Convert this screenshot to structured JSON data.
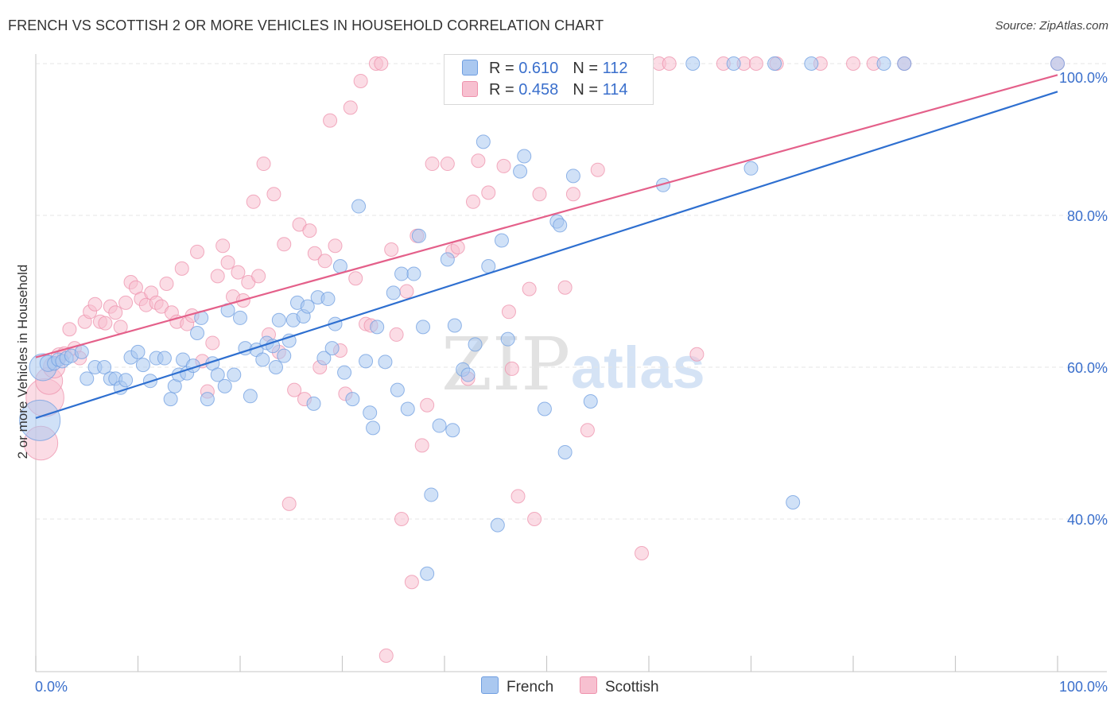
{
  "header": {
    "title": "FRENCH VS SCOTTISH 2 OR MORE VEHICLES IN HOUSEHOLD CORRELATION CHART",
    "source": "Source: ZipAtlas.com"
  },
  "colors": {
    "french_fill": "#aac8f0",
    "french_stroke": "#6f9ee0",
    "french_line": "#2e6fd0",
    "scottish_fill": "#f7c0d0",
    "scottish_stroke": "#ee92ac",
    "scottish_line": "#e4608a",
    "tick_text": "#3a6fcc",
    "grid": "#e4e4e4"
  },
  "legend": {
    "french": {
      "r_label": "R =",
      "r_value": "0.610",
      "n_label": "N =",
      "n_value": "112"
    },
    "scottish": {
      "r_label": "R =",
      "r_value": "0.458",
      "n_label": "N =",
      "n_value": "114"
    }
  },
  "watermark": {
    "part1": "ZIP",
    "part2": "atlas"
  },
  "chart_data": {
    "type": "scatter",
    "title": "FRENCH VS SCOTTISH 2 OR MORE VEHICLES IN HOUSEHOLD CORRELATION CHART",
    "xlabel": "",
    "ylabel": "2 or more Vehicles in Household",
    "xlim": [
      0,
      100
    ],
    "ylim": [
      20,
      102
    ],
    "x_tick_labels": [
      "0.0%",
      "100.0%"
    ],
    "y_ticks": [
      40,
      60,
      80,
      100
    ],
    "y_tick_labels": [
      "40.0%",
      "60.0%",
      "80.0%",
      "100.0%"
    ],
    "grid": true,
    "legend_position": "top-center",
    "series": [
      {
        "name": "French",
        "trend": {
          "x": [
            0,
            100
          ],
          "y": [
            53.3,
            96.3
          ]
        },
        "points": [
          [
            0.4,
            53,
            3
          ],
          [
            0.7,
            60,
            2
          ],
          [
            1.2,
            60.5,
            1.2
          ],
          [
            1.8,
            60.5,
            1
          ],
          [
            2.2,
            61,
            1
          ],
          [
            2.6,
            60.8,
            1
          ],
          [
            3,
            61.2,
            1
          ],
          [
            3.5,
            61.5,
            1
          ],
          [
            4.5,
            62,
            1
          ],
          [
            5,
            58.5,
            1
          ],
          [
            5.8,
            60,
            1
          ],
          [
            6.7,
            60,
            1
          ],
          [
            7.3,
            58.5,
            1
          ],
          [
            7.8,
            58.5,
            1
          ],
          [
            8.3,
            57.3,
            1
          ],
          [
            8.8,
            58.3,
            1
          ],
          [
            9.3,
            61.3,
            1
          ],
          [
            10,
            62,
            1
          ],
          [
            10.5,
            60.3,
            1
          ],
          [
            11.2,
            58.2,
            1
          ],
          [
            11.8,
            61.2,
            1
          ],
          [
            12.6,
            61.2,
            1
          ],
          [
            13.2,
            55.8,
            1
          ],
          [
            13.6,
            57.5,
            1
          ],
          [
            14,
            59,
            1
          ],
          [
            14.4,
            61,
            1
          ],
          [
            14.8,
            59.2,
            1
          ],
          [
            15.4,
            60.2,
            1
          ],
          [
            15.8,
            64.5,
            1
          ],
          [
            16.2,
            66.5,
            1
          ],
          [
            16.8,
            55.8,
            1
          ],
          [
            17.3,
            60.5,
            1
          ],
          [
            17.8,
            59,
            1
          ],
          [
            18.5,
            57.5,
            1
          ],
          [
            18.8,
            67.5,
            1
          ],
          [
            19.4,
            59,
            1
          ],
          [
            20,
            66.5,
            1
          ],
          [
            20.5,
            62.5,
            1
          ],
          [
            21,
            56.2,
            1
          ],
          [
            21.6,
            62.3,
            1
          ],
          [
            22.2,
            61,
            1
          ],
          [
            22.6,
            63.2,
            1
          ],
          [
            23.2,
            62.8,
            1
          ],
          [
            23.5,
            60,
            1
          ],
          [
            23.8,
            66.2,
            1
          ],
          [
            24.3,
            61.5,
            1
          ],
          [
            24.8,
            63.5,
            1
          ],
          [
            25.2,
            66.2,
            1
          ],
          [
            25.6,
            68.5,
            1
          ],
          [
            26.2,
            66.7,
            1
          ],
          [
            26.6,
            68,
            1
          ],
          [
            27.2,
            55.2,
            1
          ],
          [
            27.6,
            69.2,
            1
          ],
          [
            28.2,
            61.2,
            1
          ],
          [
            28.6,
            69,
            1
          ],
          [
            29,
            62.5,
            1
          ],
          [
            29.3,
            65.7,
            1
          ],
          [
            29.8,
            73.3,
            1
          ],
          [
            30.2,
            59.3,
            1
          ],
          [
            31,
            55.8,
            1
          ],
          [
            31.6,
            81.2,
            1
          ],
          [
            32.3,
            60.8,
            1
          ],
          [
            32.7,
            54,
            1
          ],
          [
            33,
            52,
            1
          ],
          [
            33.4,
            65.3,
            1
          ],
          [
            34.2,
            60.7,
            1
          ],
          [
            35,
            69.8,
            1
          ],
          [
            35.4,
            57,
            1
          ],
          [
            35.8,
            72.3,
            1
          ],
          [
            36.4,
            54.5,
            1
          ],
          [
            37,
            72.3,
            1
          ],
          [
            37.5,
            77.3,
            1
          ],
          [
            37.9,
            65.3,
            1
          ],
          [
            38.3,
            32.8,
            1
          ],
          [
            38.7,
            43.2,
            1
          ],
          [
            39.5,
            52.3,
            1
          ],
          [
            40.3,
            74.2,
            1
          ],
          [
            40.8,
            51.7,
            1
          ],
          [
            41,
            65.5,
            1
          ],
          [
            41.8,
            59.7,
            1
          ],
          [
            42.3,
            59,
            1
          ],
          [
            43,
            63,
            1
          ],
          [
            43.8,
            89.7,
            1
          ],
          [
            44.3,
            73.3,
            1
          ],
          [
            45.2,
            39.2,
            1
          ],
          [
            45.6,
            76.7,
            1
          ],
          [
            46.2,
            63.7,
            1
          ],
          [
            46.9,
            100,
            1
          ],
          [
            47.4,
            85.8,
            1
          ],
          [
            47.8,
            87.8,
            1
          ],
          [
            49.8,
            54.5,
            1
          ],
          [
            51,
            79.2,
            1
          ],
          [
            51.3,
            78.7,
            1
          ],
          [
            51.8,
            48.8,
            1
          ],
          [
            52.6,
            85.2,
            1
          ],
          [
            54.3,
            55.5,
            1
          ],
          [
            56.2,
            100,
            1
          ],
          [
            56.7,
            100,
            1
          ],
          [
            58.3,
            100,
            1
          ],
          [
            61.4,
            84,
            1
          ],
          [
            64.3,
            100,
            1
          ],
          [
            68.3,
            100,
            1
          ],
          [
            70,
            86.2,
            1
          ],
          [
            72.3,
            100,
            1
          ],
          [
            74.1,
            42.2,
            1
          ],
          [
            75.9,
            100,
            1
          ],
          [
            83,
            100,
            1
          ],
          [
            85,
            100,
            1
          ],
          [
            100,
            100,
            1
          ]
        ]
      },
      {
        "name": "Scottish",
        "trend": {
          "x": [
            0,
            100
          ],
          "y": [
            61.3,
            98.5
          ]
        },
        "points": [
          [
            0.5,
            50,
            2.5
          ],
          [
            0.9,
            56,
            2.8
          ],
          [
            1.3,
            58.2,
            2
          ],
          [
            1.8,
            60,
            1.6
          ],
          [
            2.3,
            61.5,
            1.2
          ],
          [
            2.8,
            61.8,
            1
          ],
          [
            3.3,
            65,
            1
          ],
          [
            3.8,
            62.5,
            1
          ],
          [
            4.3,
            61.2,
            1
          ],
          [
            4.8,
            66,
            1
          ],
          [
            5.3,
            67.3,
            1
          ],
          [
            5.8,
            68.3,
            1
          ],
          [
            6.3,
            66,
            1
          ],
          [
            6.8,
            65.8,
            1
          ],
          [
            7.3,
            68,
            1
          ],
          [
            7.8,
            67.2,
            1
          ],
          [
            8.3,
            65.3,
            1
          ],
          [
            8.8,
            68.5,
            1
          ],
          [
            9.3,
            71.2,
            1
          ],
          [
            9.8,
            70.5,
            1
          ],
          [
            10.3,
            69,
            1
          ],
          [
            10.8,
            68.2,
            1
          ],
          [
            11.3,
            69.8,
            1
          ],
          [
            11.8,
            68.5,
            1
          ],
          [
            12.3,
            68,
            1
          ],
          [
            12.8,
            71,
            1
          ],
          [
            13.3,
            67.2,
            1
          ],
          [
            13.8,
            66,
            1
          ],
          [
            14.3,
            73,
            1
          ],
          [
            14.8,
            65.7,
            1
          ],
          [
            15.3,
            66.8,
            1
          ],
          [
            15.8,
            75.2,
            1
          ],
          [
            16.3,
            60.8,
            1
          ],
          [
            16.8,
            56.8,
            1
          ],
          [
            17.3,
            63.2,
            1
          ],
          [
            17.8,
            72,
            1
          ],
          [
            18.3,
            76,
            1
          ],
          [
            18.8,
            73.8,
            1
          ],
          [
            19.3,
            69.3,
            1
          ],
          [
            19.8,
            72.5,
            1
          ],
          [
            20.3,
            68.8,
            1
          ],
          [
            20.8,
            71.2,
            1
          ],
          [
            21.3,
            81.8,
            1
          ],
          [
            21.8,
            72,
            1
          ],
          [
            22.3,
            86.8,
            1
          ],
          [
            22.8,
            64.3,
            1
          ],
          [
            23.3,
            82.8,
            1
          ],
          [
            23.8,
            62,
            1
          ],
          [
            24.3,
            76.2,
            1
          ],
          [
            24.8,
            42,
            1
          ],
          [
            25.3,
            57,
            1
          ],
          [
            25.8,
            78.8,
            1
          ],
          [
            26.3,
            55.8,
            1
          ],
          [
            26.8,
            78,
            1
          ],
          [
            27.3,
            75,
            1
          ],
          [
            27.8,
            60,
            1
          ],
          [
            28.3,
            74,
            1
          ],
          [
            28.8,
            92.5,
            1
          ],
          [
            29.3,
            76,
            1
          ],
          [
            29.8,
            62.2,
            1
          ],
          [
            30.3,
            56.5,
            1
          ],
          [
            30.8,
            94.2,
            1
          ],
          [
            31.3,
            71.7,
            1
          ],
          [
            31.8,
            97.7,
            1
          ],
          [
            32.3,
            65.7,
            1
          ],
          [
            32.8,
            65.5,
            1
          ],
          [
            33.3,
            100,
            1
          ],
          [
            33.8,
            100,
            1
          ],
          [
            34.3,
            22,
            1
          ],
          [
            34.8,
            75.5,
            1
          ],
          [
            35.3,
            64.3,
            1
          ],
          [
            35.8,
            40,
            1
          ],
          [
            36.3,
            70,
            1
          ],
          [
            36.8,
            31.7,
            1
          ],
          [
            37.3,
            77.3,
            1
          ],
          [
            37.8,
            49.7,
            1
          ],
          [
            38.3,
            55,
            1
          ],
          [
            38.8,
            86.8,
            1
          ],
          [
            40.3,
            86.8,
            1
          ],
          [
            40.8,
            75.3,
            1
          ],
          [
            41.3,
            75.8,
            1
          ],
          [
            42.3,
            58.5,
            1
          ],
          [
            42.8,
            81.8,
            1
          ],
          [
            43.3,
            87.2,
            1
          ],
          [
            44.3,
            83,
            1
          ],
          [
            45.8,
            86.5,
            1
          ],
          [
            46.3,
            67.3,
            1
          ],
          [
            46.6,
            59.8,
            1
          ],
          [
            47.2,
            43,
            1
          ],
          [
            47.7,
            100,
            1
          ],
          [
            48.3,
            70.3,
            1
          ],
          [
            48.8,
            40,
            1
          ],
          [
            49.3,
            82.8,
            1
          ],
          [
            51,
            100,
            1
          ],
          [
            51.8,
            70.5,
            1
          ],
          [
            52.6,
            82.8,
            1
          ],
          [
            53.3,
            100,
            1
          ],
          [
            54,
            51.7,
            1
          ],
          [
            55,
            86,
            1
          ],
          [
            59.3,
            35.5,
            1
          ],
          [
            61,
            100,
            1
          ],
          [
            62,
            100,
            1
          ],
          [
            64.7,
            61.7,
            1
          ],
          [
            67.3,
            100,
            1
          ],
          [
            69.3,
            100,
            1
          ],
          [
            70.5,
            100,
            1
          ],
          [
            72.5,
            100,
            1
          ],
          [
            76.8,
            100,
            1
          ],
          [
            80,
            100,
            1
          ],
          [
            82,
            100,
            1
          ],
          [
            85,
            100,
            1
          ],
          [
            100,
            100,
            1
          ]
        ]
      }
    ]
  }
}
